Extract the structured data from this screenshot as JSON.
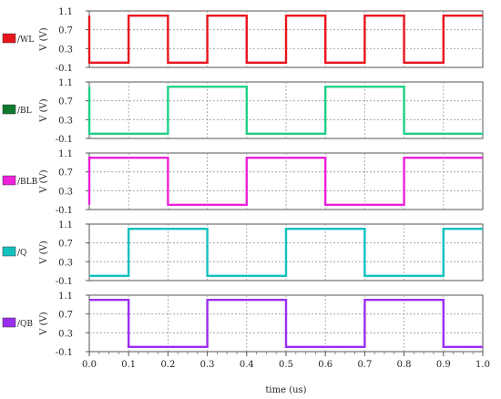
{
  "chart_data": {
    "type": "line",
    "xlabel": "time (us)",
    "xlim": [
      0.0,
      1.0
    ],
    "x_ticks": [
      "0.0",
      "0.1",
      "0.2",
      "0.3",
      "0.4",
      "0.5",
      "0.6",
      "0.7",
      "0.8",
      "0.9",
      "1.0"
    ],
    "ylabel": "V (V)",
    "ylim": [
      -0.1,
      1.1
    ],
    "y_ticks": [
      "1.1",
      "0.7",
      "0.3",
      "-0.1"
    ],
    "y_ticks_raw": [
      1.1,
      0.7,
      0.3,
      -0.1
    ],
    "grid": "dashed-both",
    "series": [
      {
        "name": "/WL",
        "color": "#e8141d",
        "x": [
          0.0,
          0.0,
          0.1,
          0.1,
          0.2,
          0.2,
          0.3,
          0.3,
          0.4,
          0.4,
          0.5,
          0.5,
          0.6,
          0.6,
          0.7,
          0.7,
          0.8,
          0.8,
          0.9,
          0.9,
          1.0
        ],
        "y": [
          1.0,
          0.0,
          0.0,
          1.0,
          1.0,
          0.0,
          0.0,
          1.0,
          1.0,
          0.0,
          0.0,
          1.0,
          1.0,
          0.0,
          0.0,
          1.0,
          1.0,
          0.0,
          0.0,
          1.0,
          1.0
        ]
      },
      {
        "name": "/BL",
        "color": "#0f7a2e",
        "trace_color": "#1fd087",
        "x": [
          0.0,
          0.0,
          0.2,
          0.2,
          0.4,
          0.4,
          0.6,
          0.6,
          0.8,
          0.8,
          1.0
        ],
        "y": [
          1.0,
          0.0,
          0.0,
          1.0,
          1.0,
          0.0,
          0.0,
          1.0,
          1.0,
          0.0,
          0.0
        ]
      },
      {
        "name": "/BLB",
        "color": "#ee22d8",
        "x": [
          0.0,
          0.0,
          0.2,
          0.2,
          0.4,
          0.4,
          0.6,
          0.6,
          0.8,
          0.8,
          1.0
        ],
        "y": [
          0.0,
          1.0,
          1.0,
          0.0,
          0.0,
          1.0,
          1.0,
          0.0,
          0.0,
          1.0,
          1.0
        ]
      },
      {
        "name": "/Q",
        "color": "#13c0c0",
        "x": [
          0.0,
          0.1,
          0.1,
          0.3,
          0.3,
          0.5,
          0.5,
          0.7,
          0.7,
          0.9,
          0.9,
          1.0
        ],
        "y": [
          0.0,
          0.0,
          1.0,
          1.0,
          0.0,
          0.0,
          1.0,
          1.0,
          0.0,
          0.0,
          1.0,
          1.0
        ]
      },
      {
        "name": "/QB",
        "color": "#9a2ef0",
        "x": [
          0.0,
          0.1,
          0.1,
          0.3,
          0.3,
          0.5,
          0.5,
          0.7,
          0.7,
          0.9,
          0.9,
          1.0
        ],
        "y": [
          1.0,
          1.0,
          0.0,
          0.0,
          1.0,
          1.0,
          0.0,
          0.0,
          1.0,
          1.0,
          0.0,
          0.0
        ]
      }
    ]
  }
}
